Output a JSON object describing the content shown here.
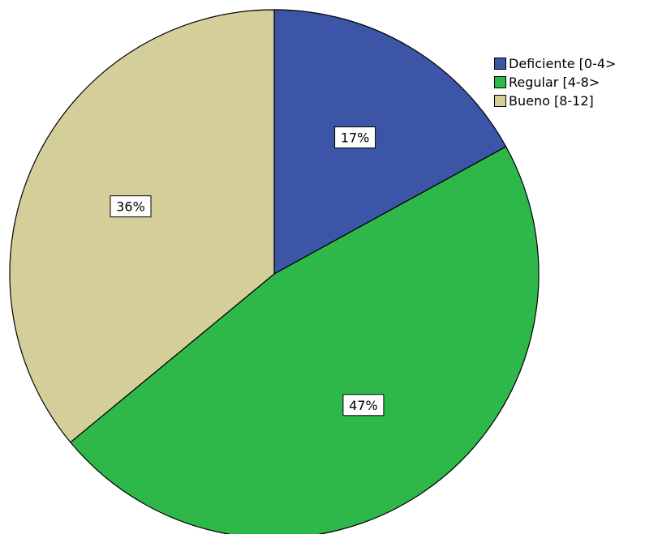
{
  "chart_data": {
    "type": "pie",
    "title": "",
    "slices": [
      {
        "label": "Deficiente [0-4>",
        "value": 17,
        "data_label": "17%",
        "color": "#3d55a6"
      },
      {
        "label": "Regular [4-8>",
        "value": 47,
        "data_label": "47%",
        "color": "#2eb84a"
      },
      {
        "label": "Bueno [8-12]",
        "value": 36,
        "data_label": "36%",
        "color": "#d4cf9a"
      }
    ],
    "start_angle_deg": 0,
    "direction": "clockwise",
    "legend": {
      "position": "top-right",
      "items": [
        {
          "label": "Deficiente [0-4>",
          "color": "#3d55a6"
        },
        {
          "label": "Regular [4-8>",
          "color": "#2eb84a"
        },
        {
          "label": "Bueno [8-12]",
          "color": "#d4cf9a"
        }
      ]
    },
    "edge_color": "#000000",
    "label_box_border": "#000000",
    "label_box_fill": "#ffffff"
  }
}
